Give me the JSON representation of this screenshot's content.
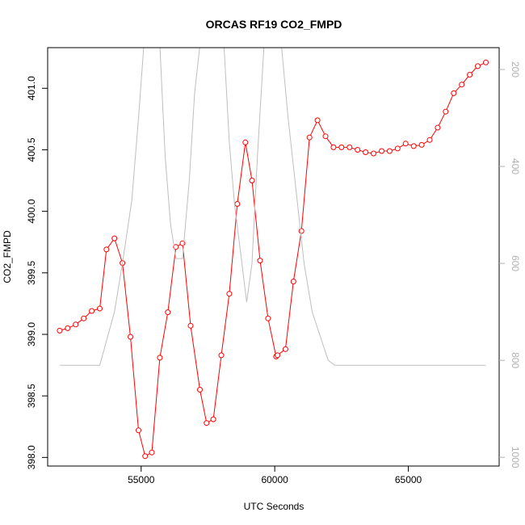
{
  "colors": {
    "co2": "#ff0000",
    "pressure": "#bebebe",
    "axis": "#000000",
    "right_axis": "#b0b0b0"
  },
  "chart_data": {
    "type": "line",
    "title": "ORCAS RF19 CO2_FMPD",
    "xlabel": "UTC Seconds",
    "ylabel": "CO2_FMPD",
    "xlim": [
      51500,
      68400
    ],
    "ylim": [
      397.93,
      401.33
    ],
    "y2lim": [
      1018,
      155
    ],
    "x_ticks": [
      55000,
      60000,
      65000
    ],
    "x_tick_labels": [
      "55000",
      "60000",
      "65000"
    ],
    "y_ticks": [
      398.0,
      398.5,
      399.0,
      399.5,
      400.0,
      400.5,
      401.0
    ],
    "y_tick_labels": [
      "398.0",
      "398.5",
      "399.0",
      "399.5",
      "400.0",
      "400.5",
      "401.0"
    ],
    "y2_ticks": [
      200,
      400,
      600,
      800,
      1000
    ],
    "y2_tick_labels": [
      "200",
      "400",
      "600",
      "800",
      "1000"
    ],
    "series": [
      {
        "axis": "left",
        "style": "line+points",
        "color": "#ff0000",
        "x": [
          51950,
          52250,
          52550,
          52850,
          53150,
          53450,
          53700,
          54000,
          54300,
          54600,
          54900,
          55150,
          55400,
          55700,
          56000,
          56300,
          56550,
          56850,
          57200,
          57450,
          57700,
          58000,
          58300,
          58600,
          58900,
          59150,
          59450,
          59750,
          60050,
          60100,
          60400,
          60700,
          61000,
          61300,
          61600,
          61900,
          62200,
          62500,
          62800,
          63100,
          63400,
          63700,
          64000,
          64300,
          64600,
          64900,
          65200,
          65500,
          65800,
          66100,
          66400,
          66700,
          67000,
          67300,
          67600,
          67900
        ],
        "y": [
          399.03,
          399.05,
          399.08,
          399.13,
          399.19,
          399.21,
          399.69,
          399.78,
          399.58,
          398.98,
          398.22,
          398.01,
          398.04,
          398.81,
          399.18,
          399.71,
          399.74,
          399.07,
          398.55,
          398.28,
          398.31,
          398.83,
          399.33,
          400.06,
          400.56,
          400.25,
          399.6,
          399.13,
          398.82,
          398.83,
          398.88,
          399.43,
          399.84,
          400.6,
          400.74,
          400.61,
          400.52,
          400.52,
          400.52,
          400.5,
          400.48,
          400.47,
          400.49,
          400.49,
          400.51,
          400.55,
          400.53,
          400.54,
          400.58,
          400.68,
          400.81,
          400.96,
          401.03,
          401.11,
          401.18,
          401.21
        ]
      },
      {
        "axis": "right",
        "style": "line",
        "color": "#bebebe",
        "x": [
          51950,
          52500,
          53450,
          53700,
          54000,
          54300,
          54650,
          54900,
          55100,
          55300,
          55500,
          55700,
          55900,
          56100,
          56300,
          56550,
          56800,
          57000,
          57200,
          57450,
          57700,
          57900,
          58100,
          58300,
          58500,
          58750,
          58950,
          59150,
          59350,
          59600,
          59800,
          60000,
          60250,
          60500,
          60800,
          61100,
          61400,
          61700,
          62000,
          62250,
          62800,
          64000,
          66000,
          67900
        ],
        "y": [
          810,
          810,
          810,
          760,
          700,
          600,
          470,
          300,
          150,
          150,
          150,
          150,
          380,
          520,
          590,
          590,
          430,
          250,
          150,
          150,
          150,
          150,
          150,
          350,
          480,
          590,
          680,
          600,
          380,
          150,
          150,
          150,
          150,
          300,
          450,
          600,
          700,
          750,
          800,
          810,
          810,
          810,
          810,
          810
        ]
      }
    ]
  }
}
